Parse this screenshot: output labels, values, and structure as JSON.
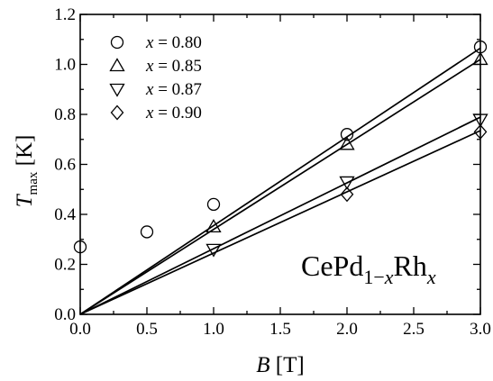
{
  "chart_data": {
    "type": "scatter",
    "title": "",
    "xlabel": "B [T]",
    "ylabel": "T max [K]",
    "xlim": [
      0.0,
      3.0
    ],
    "ylim": [
      0.0,
      1.2
    ],
    "x_ticks": [
      "0.0",
      "0.5",
      "1.0",
      "1.5",
      "2.0",
      "2.5",
      "3.0"
    ],
    "y_ticks": [
      "0.0",
      "0.2",
      "0.4",
      "0.6",
      "0.8",
      "1.0",
      "1.2"
    ],
    "grid": false,
    "legend_position": "top-left",
    "annotation": "CePd1−xRhx",
    "series": [
      {
        "name": "x = 0.80",
        "marker": "circle",
        "points": [
          [
            0.0,
            0.27
          ],
          [
            0.5,
            0.33
          ],
          [
            1.0,
            0.44
          ],
          [
            2.0,
            0.72
          ],
          [
            3.0,
            1.07
          ]
        ],
        "fit": {
          "slope": 0.355,
          "intercept": 0.0
        }
      },
      {
        "name": "x = 0.85",
        "marker": "triangle-up",
        "points": [
          [
            1.0,
            0.35
          ],
          [
            2.0,
            0.68
          ],
          [
            3.0,
            1.02
          ]
        ],
        "fit": {
          "slope": 0.34,
          "intercept": 0.0
        }
      },
      {
        "name": "x = 0.87",
        "marker": "triangle-down",
        "points": [
          [
            1.0,
            0.26
          ],
          [
            2.0,
            0.53
          ],
          [
            3.0,
            0.78
          ]
        ],
        "fit": {
          "slope": 0.263,
          "intercept": 0.0
        }
      },
      {
        "name": "x = 0.90",
        "marker": "diamond",
        "points": [
          [
            2.0,
            0.48
          ],
          [
            3.0,
            0.73
          ]
        ],
        "fit": {
          "slope": 0.245,
          "intercept": 0.0
        }
      }
    ]
  }
}
